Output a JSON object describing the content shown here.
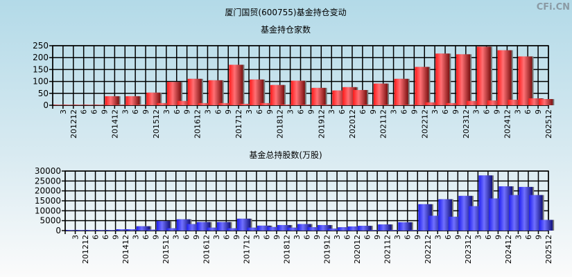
{
  "title": "厦门国贸(600755)基金持仓变动",
  "watermark": "CFi.CN",
  "colors": {
    "top_bars": "#e8252b",
    "bottom_bars": "#3a3aee",
    "grid": "#000000"
  },
  "chart_data": [
    {
      "type": "bar",
      "title": "基金持仓家数",
      "ylim": [
        0,
        250
      ],
      "yticks": [
        0,
        50,
        100,
        150,
        200,
        250
      ],
      "grid": true,
      "categories": [
        "3",
        "201212",
        "6",
        "6",
        "9",
        "201412",
        "3",
        "6",
        "9",
        "201512",
        "3",
        "6",
        "9",
        "201612",
        "3",
        "6",
        "9",
        "201712",
        "3",
        "6",
        "9",
        "201812",
        "3",
        "6",
        "9",
        "201912",
        "3",
        "6",
        "202012",
        "6",
        "9",
        "202112",
        "3",
        "6",
        "9",
        "202212",
        "3",
        "6",
        "9",
        "202312",
        "3",
        "6",
        "9",
        "202412",
        "3",
        "6",
        "9",
        "202512"
      ],
      "values": [
        2,
        2,
        2,
        2,
        2,
        38,
        2,
        38,
        2,
        53,
        9,
        98,
        18,
        111,
        9,
        105,
        9,
        170,
        6,
        108,
        9,
        85,
        3,
        103,
        2,
        73,
        2,
        62,
        76,
        64,
        2,
        91,
        2,
        111,
        2,
        161,
        12,
        217,
        9,
        214,
        18,
        246,
        20,
        231,
        23,
        205,
        29,
        26
      ]
    },
    {
      "type": "bar",
      "title": "基金总持股数(万股)",
      "ylim": [
        0,
        30000
      ],
      "yticks": [
        0,
        5000,
        10000,
        15000,
        20000,
        25000,
        30000
      ],
      "grid": true,
      "categories": [
        "3",
        "201212",
        "6",
        "6",
        "9",
        "201412",
        "3",
        "6",
        "9",
        "201512",
        "3",
        "6",
        "9",
        "201612",
        "3",
        "6",
        "9",
        "201712",
        "3",
        "6",
        "9",
        "201812",
        "3",
        "6",
        "9",
        "201912",
        "3",
        "6",
        "202012",
        "6",
        "9",
        "202112",
        "3",
        "6",
        "9",
        "202212",
        "3",
        "6",
        "9",
        "202312",
        "3",
        "6",
        "9",
        "202412",
        "3",
        "6",
        "9",
        "202512"
      ],
      "values": [
        300,
        300,
        300,
        300,
        300,
        700,
        700,
        2200,
        500,
        4800,
        1200,
        5700,
        3300,
        4300,
        1500,
        4300,
        1200,
        6000,
        1500,
        2500,
        1800,
        2800,
        1500,
        3300,
        1700,
        2800,
        1000,
        1700,
        2100,
        2400,
        300,
        3100,
        300,
        4200,
        300,
        13300,
        7500,
        15800,
        7000,
        17500,
        12300,
        27800,
        16200,
        22300,
        17900,
        22000,
        17900,
        5400
      ]
    }
  ]
}
